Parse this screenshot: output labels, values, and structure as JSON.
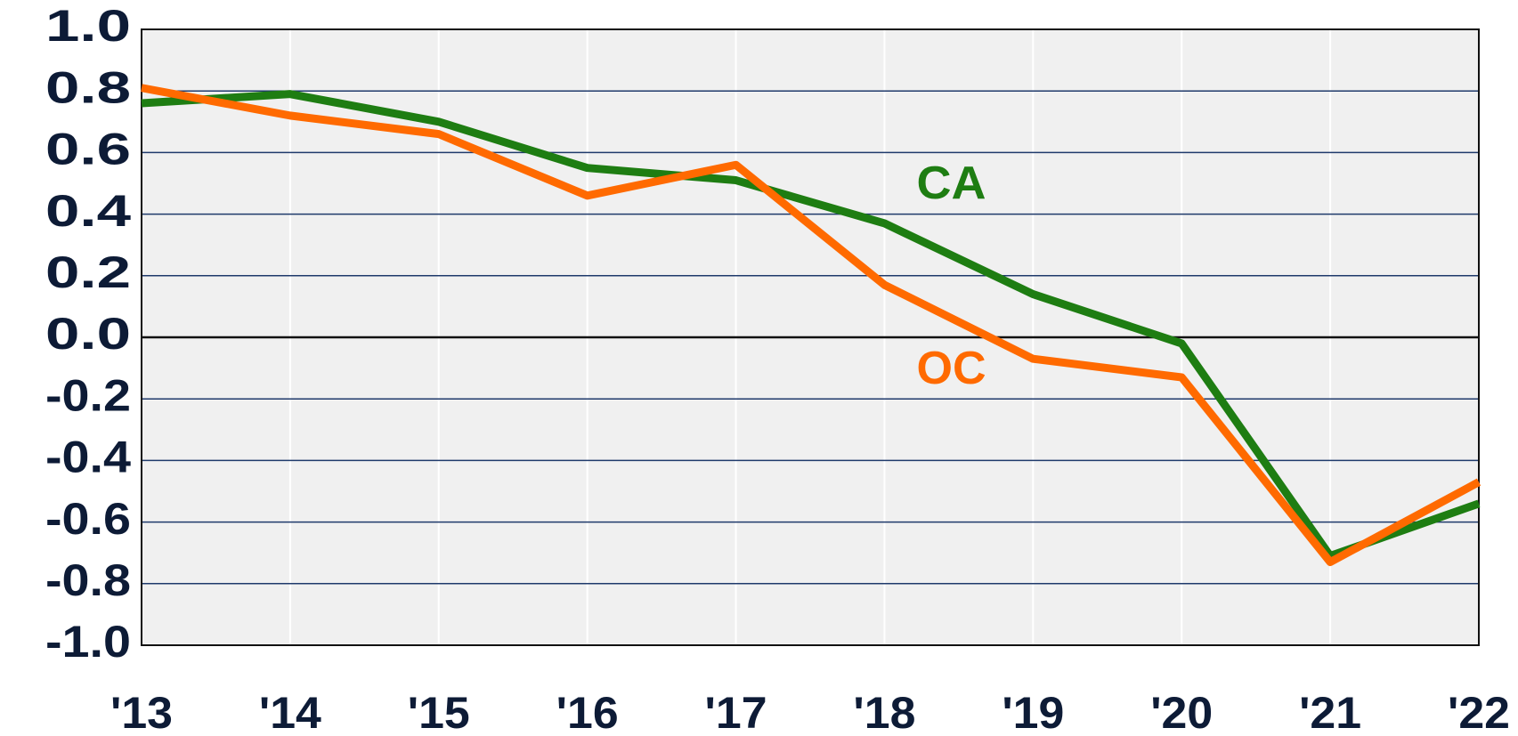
{
  "chart_data": {
    "type": "line",
    "categories": [
      "'13",
      "'14",
      "'15",
      "'16",
      "'17",
      "'18",
      "'19",
      "'20",
      "'21",
      "'22"
    ],
    "series": [
      {
        "name": "CA",
        "color": "#1e7d12",
        "values": [
          0.76,
          0.79,
          0.7,
          0.55,
          0.51,
          0.37,
          0.14,
          -0.02,
          -0.71,
          -0.54
        ]
      },
      {
        "name": "OC",
        "color": "#ff6a00",
        "values": [
          0.81,
          0.72,
          0.66,
          0.46,
          0.56,
          0.17,
          -0.07,
          -0.13,
          -0.73,
          -0.47
        ]
      }
    ],
    "ylim": [
      -1.0,
      1.0
    ],
    "yticks": [
      {
        "value": -1.0,
        "label": "-1.0"
      },
      -0.8,
      -0.6,
      -0.4,
      -0.2,
      {
        "value": 0.0,
        "label": "0.0"
      },
      0.2,
      0.4,
      0.6,
      0.8,
      {
        "value": 1.0,
        "label": "1.0"
      }
    ],
    "grid": true
  }
}
